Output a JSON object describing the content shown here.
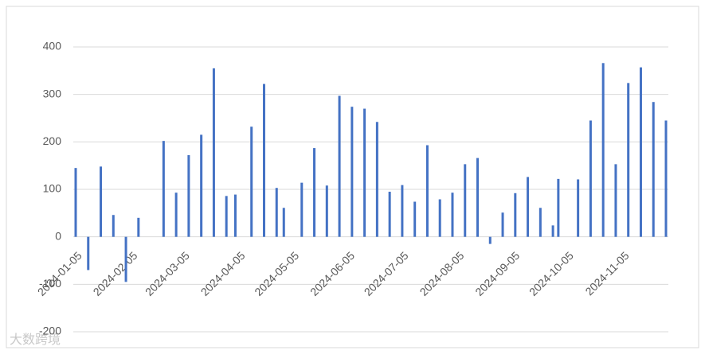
{
  "chart_data": {
    "type": "bar",
    "color": "#4472c4",
    "grid": true,
    "x": [
      "2024-01-05",
      "2024-01-12",
      "2024-01-19",
      "2024-01-26",
      "2024-02-02",
      "2024-02-09",
      "2024-02-23",
      "2024-03-01",
      "2024-03-08",
      "2024-03-15",
      "2024-03-22",
      "2024-03-29",
      "2024-04-03",
      "2024-04-12",
      "2024-04-19",
      "2024-04-26",
      "2024-04-30",
      "2024-05-10",
      "2024-05-17",
      "2024-05-24",
      "2024-05-31",
      "2024-06-07",
      "2024-06-14",
      "2024-06-21",
      "2024-06-28",
      "2024-07-05",
      "2024-07-12",
      "2024-07-19",
      "2024-07-26",
      "2024-08-02",
      "2024-08-09",
      "2024-08-16",
      "2024-08-23",
      "2024-08-30",
      "2024-09-06",
      "2024-09-13",
      "2024-09-20",
      "2024-09-27",
      "2024-09-30",
      "2024-10-11",
      "2024-10-18",
      "2024-10-25",
      "2024-11-01",
      "2024-11-08",
      "2024-11-15",
      "2024-11-22",
      "2024-11-29"
    ],
    "values": [
      145,
      -70,
      148,
      46,
      -95,
      40,
      202,
      93,
      172,
      215,
      355,
      86,
      89,
      232,
      322,
      103,
      61,
      114,
      187,
      108,
      297,
      274,
      270,
      242,
      95,
      109,
      74,
      193,
      79,
      93,
      153,
      166,
      -15,
      51,
      92,
      126,
      61,
      24,
      122,
      121,
      245,
      366,
      153,
      324,
      357,
      284,
      245
    ],
    "xlim": [
      "2024-01-05",
      "2024-11-29"
    ],
    "xticks": [
      "2024-01-05",
      "2024-02-05",
      "2024-03-05",
      "2024-04-05",
      "2024-05-05",
      "2024-06-05",
      "2024-07-05",
      "2024-08-05",
      "2024-09-05",
      "2024-10-05",
      "2024-11-05"
    ],
    "ylim": [
      -200,
      400
    ],
    "yticks": [
      -200,
      -100,
      0,
      100,
      200,
      300,
      400
    ],
    "watermark": "大数跨境"
  }
}
